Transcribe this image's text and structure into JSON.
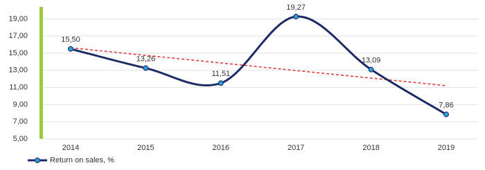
{
  "chart_data": {
    "type": "line",
    "categories": [
      "2014",
      "2015",
      "2016",
      "2017",
      "2018",
      "2019"
    ],
    "series": [
      {
        "name": "Return on sales, %",
        "color": "#1c2a66",
        "marker_color": "#2e9ad6",
        "values": [
          15.5,
          13.26,
          11.51,
          19.27,
          13.09,
          7.86
        ],
        "value_labels": [
          "15,50",
          "13,26",
          "11,51",
          "19,27",
          "13,09",
          "7,86"
        ]
      }
    ],
    "trend": {
      "color": "#e03030",
      "values": [
        15.63,
        11.21
      ]
    },
    "ylim": [
      5,
      20.4
    ],
    "yticks": [
      {
        "value": 5,
        "label": "5,00"
      },
      {
        "value": 7,
        "label": "7,00"
      },
      {
        "value": 9,
        "label": "9,00"
      },
      {
        "value": 11,
        "label": "11,00"
      },
      {
        "value": 13,
        "label": "13,00"
      },
      {
        "value": 15,
        "label": "15,00"
      },
      {
        "value": 17,
        "label": "17,00"
      },
      {
        "value": 19,
        "label": "19,00"
      }
    ],
    "grid": true,
    "smooth": true,
    "legend": "bottom-left"
  }
}
